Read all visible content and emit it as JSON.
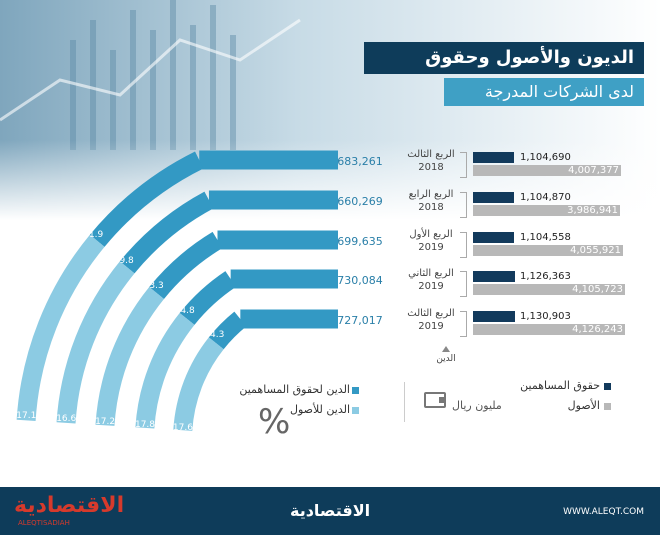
{
  "header": {
    "title": "الديون والأصول وحقوق المساهمين",
    "subtitle": "لدى الشركات المدرجة"
  },
  "chart_data": [
    {
      "type": "bar",
      "title": "الديون والأصول وحقوق المساهمين لدى الشركات المدرجة",
      "categories": [
        "الربع الثالث 2018",
        "الربع الرابع 2018",
        "الربع الأول 2019",
        "الربع الثاني 2019",
        "الربع الثالث 2019"
      ],
      "series": [
        {
          "name": "الدين",
          "values": [
            683261,
            660269,
            699635,
            730084,
            727017
          ]
        },
        {
          "name": "حقوق المساهمين",
          "values": [
            1104690,
            1104870,
            1104558,
            1126363,
            1130903
          ]
        },
        {
          "name": "الأصول",
          "values": [
            4007377,
            3986941,
            4055921,
            4105723,
            4126243
          ]
        }
      ],
      "unit": "مليون ريال"
    },
    {
      "type": "bar",
      "categories": [
        "الربع الثالث 2018",
        "الربع الرابع 2018",
        "الربع الأول 2019",
        "الربع الثاني 2019",
        "الربع الثالث 2019"
      ],
      "series": [
        {
          "name": "الدين لحقوق المساهمين",
          "values": [
            61.9,
            59.8,
            63.3,
            64.8,
            64.3
          ]
        },
        {
          "name": "الدين للأصول",
          "values": [
            17.1,
            16.6,
            17.2,
            17.8,
            17.6
          ]
        }
      ],
      "unit": "%"
    }
  ],
  "rows": [
    {
      "period": "الربع الثالث",
      "year": "2018",
      "debt": "683,261",
      "equity": "1,104,690",
      "assets": "4,007,377"
    },
    {
      "period": "الربع الرابع",
      "year": "2018",
      "debt": "660,269",
      "equity": "1,104,870",
      "assets": "3,986,941"
    },
    {
      "period": "الربع الأول",
      "year": "2019",
      "debt": "699,635",
      "equity": "1,104,558",
      "assets": "4,055,921"
    },
    {
      "period": "الربع الثاني",
      "year": "2019",
      "debt": "730,084",
      "equity": "1,126,363",
      "assets": "4,105,723"
    },
    {
      "period": "الربع الثالث",
      "year": "2019",
      "debt": "727,017",
      "equity": "1,130,903",
      "assets": "4,126,243"
    }
  ],
  "debt_caption": "الدين",
  "legend": {
    "debt_to_equity": "الدين لحقوق المساهمين",
    "debt_to_assets": "الدين للأصول",
    "percent_symbol": "%",
    "equity": "حقوق المساهمين",
    "assets": "الأصول",
    "unit": "مليون ريال"
  },
  "footer": {
    "logo": "الاقتصادية",
    "logo_sub": "ALEQTISADIAH",
    "center_logo": "الاقتصادية",
    "url": "WWW.ALEQT.COM"
  },
  "colors": {
    "navy": "#0e3c5a",
    "dark_teal": "#3399c4",
    "light_teal": "#8ccbe3",
    "equity_bar": "#123a5c",
    "assets_bar": "#b8b8b8",
    "debt_value": "#2a7fa8"
  }
}
